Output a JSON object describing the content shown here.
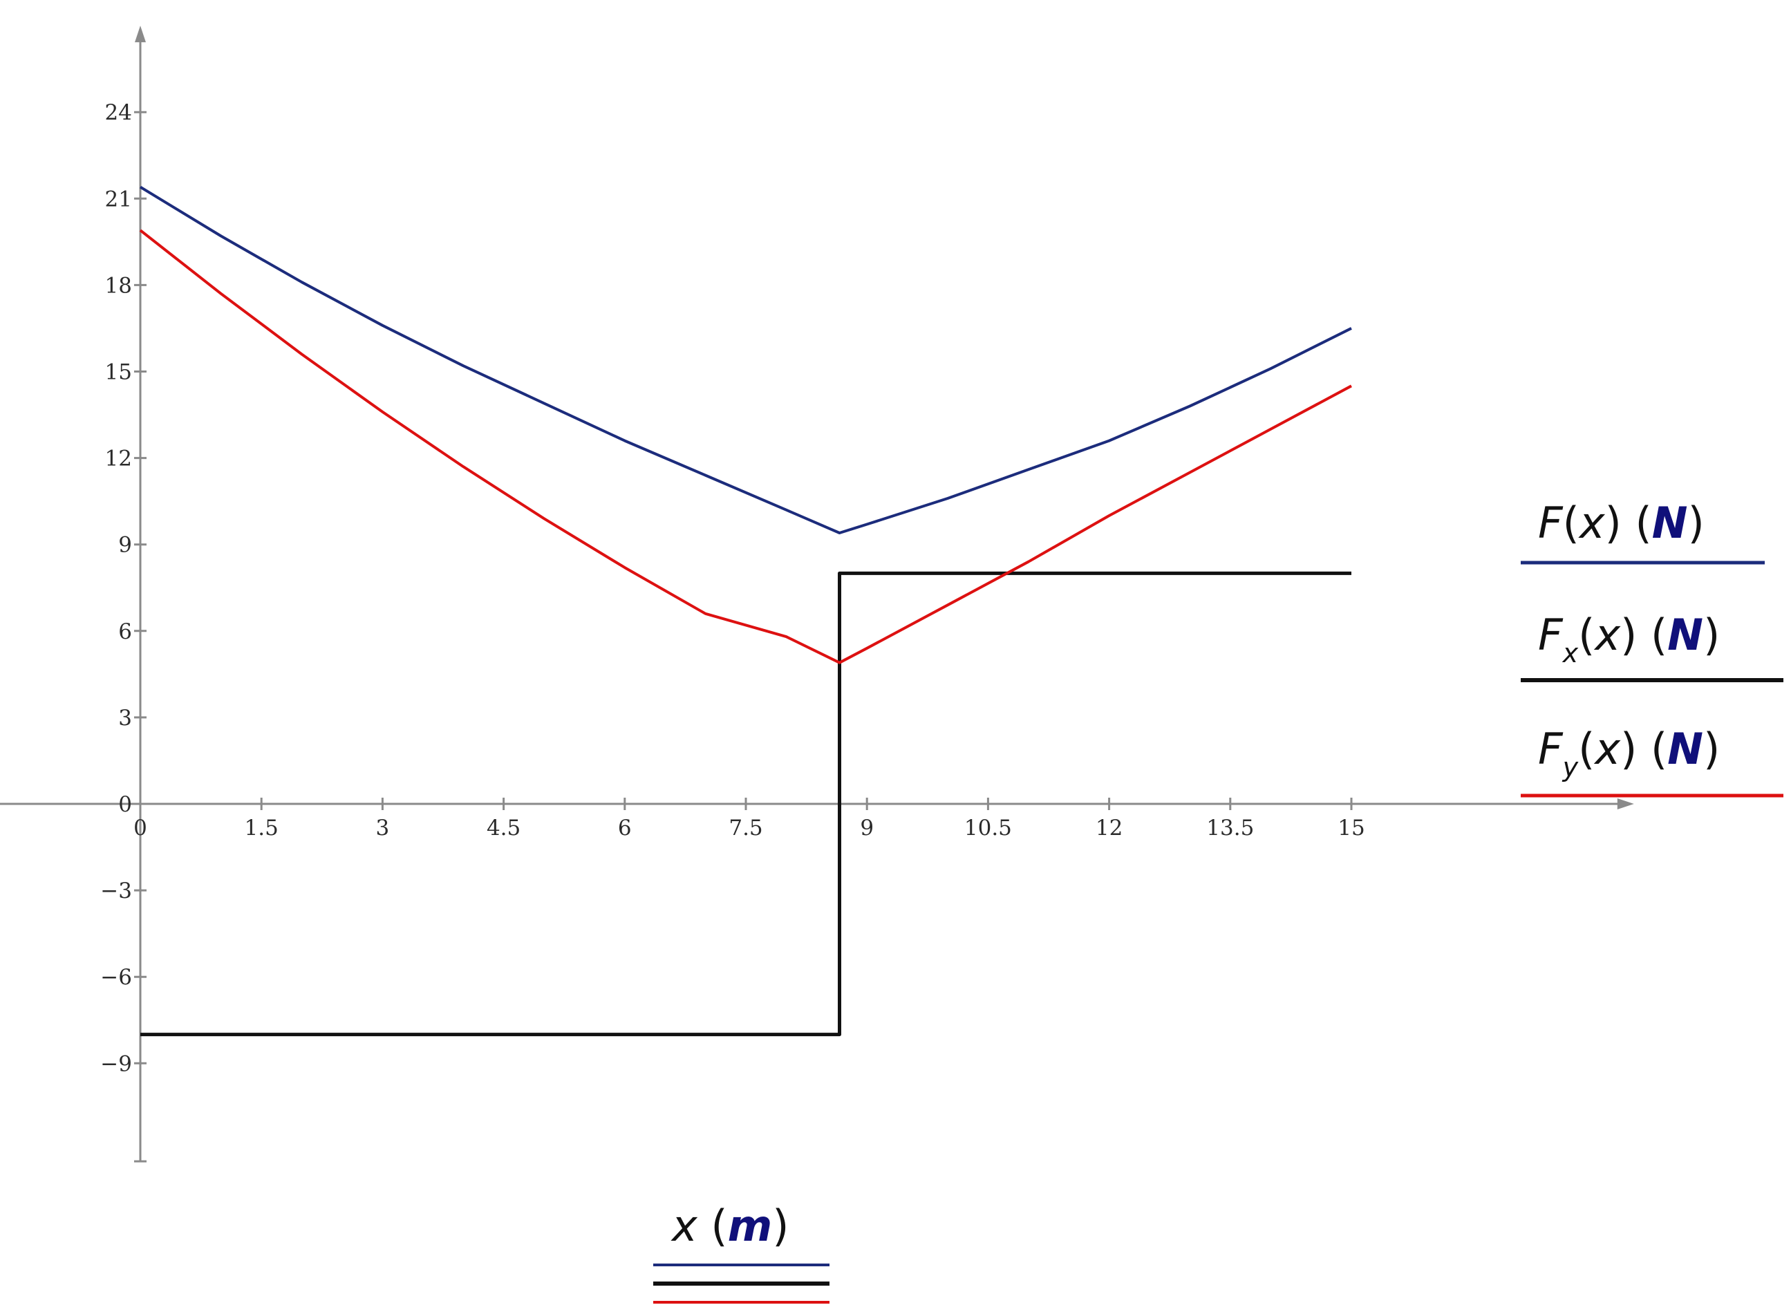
{
  "chart_data": {
    "type": "line",
    "title": "",
    "x_axis": {
      "label": {
        "var": "x",
        "unit": "m"
      },
      "range": [
        -2,
        18.5
      ],
      "ticks": [
        0,
        1.5,
        3,
        4.5,
        6,
        7.5,
        9,
        10.5,
        12,
        13.5,
        15
      ],
      "tick_labels": [
        "0",
        "1.5",
        "3",
        "4.5",
        "6",
        "7.5",
        "9",
        "10.5",
        "12",
        "13.5",
        "15"
      ]
    },
    "y_axis": {
      "range": [
        -12.4,
        27
      ],
      "ticks": [
        -9,
        -6,
        -3,
        0,
        3,
        6,
        9,
        12,
        15,
        18,
        21,
        24
      ],
      "tick_labels": [
        "−9",
        "−6",
        "−3",
        "0",
        "3",
        "6",
        "9",
        "12",
        "15",
        "18",
        "21",
        "24"
      ]
    },
    "grid": false,
    "legend": {
      "placement": "right"
    },
    "series": [
      {
        "key": "F",
        "name": "F(x)",
        "func": "F",
        "sub": "",
        "unit": "N",
        "color": "#1c2c7c",
        "x": [
          0,
          1,
          2,
          3,
          4,
          5,
          6,
          7,
          8,
          8.66,
          9,
          10,
          11,
          12,
          13,
          14,
          15
        ],
        "y": [
          21.4,
          19.7,
          18.1,
          16.6,
          15.2,
          13.9,
          12.6,
          11.4,
          10.2,
          9.4,
          9.7,
          10.6,
          11.6,
          12.6,
          13.8,
          15.1,
          16.5
        ]
      },
      {
        "key": "Fx",
        "name": "Fx(x)",
        "func": "F",
        "sub": "x",
        "unit": "N",
        "color": "#111111",
        "x": [
          0,
          8.66,
          8.66,
          15
        ],
        "y": [
          -8,
          -8,
          8,
          8
        ]
      },
      {
        "key": "Fy",
        "name": "Fy(x)",
        "func": "F",
        "sub": "y",
        "unit": "N",
        "color": "#dd1111",
        "x": [
          0,
          1,
          2,
          3,
          4,
          5,
          6,
          7,
          8,
          8.66,
          9,
          10,
          11,
          12,
          13,
          14,
          15
        ],
        "y": [
          19.9,
          17.7,
          15.6,
          13.6,
          11.7,
          9.9,
          8.2,
          6.6,
          5.8,
          4.9,
          5.4,
          6.9,
          8.4,
          10.0,
          11.5,
          13.0,
          14.5
        ]
      }
    ]
  }
}
